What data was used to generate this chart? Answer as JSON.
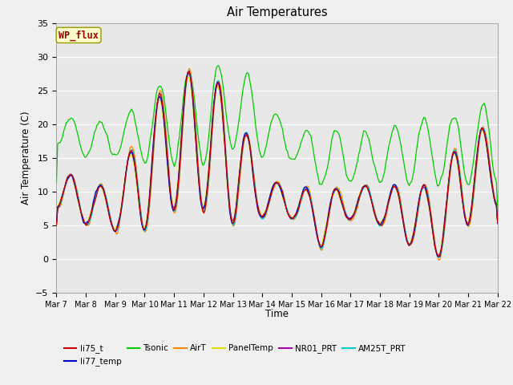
{
  "title": "Air Temperatures",
  "xlabel": "Time",
  "ylabel": "Air Temperature (C)",
  "ylim": [
    -5,
    35
  ],
  "background_color": "#e8e8e8",
  "fig_facecolor": "#f0f0f0",
  "series_colors": {
    "li75_t": "#cc0000",
    "li77_temp": "#0000cc",
    "Tsonic": "#00cc00",
    "AirT": "#ff8800",
    "PanelTemp": "#dddd00",
    "NR01_PRT": "#aa00aa",
    "AM25T_PRT": "#00cccc"
  },
  "wp_flux_box": {
    "text": "WP_flux",
    "bg": "#ffffcc",
    "border": "#888800",
    "text_color": "#990000"
  },
  "x_tick_labels": [
    "Mar 7",
    "Mar 8",
    "Mar 9",
    "Mar 10",
    "Mar 11",
    "Mar 12",
    "Mar 13",
    "Mar 14",
    "Mar 15",
    "Mar 16",
    "Mar 17",
    "Mar 18",
    "Mar 19",
    "Mar 20",
    "Mar 21",
    "Mar 22"
  ],
  "legend_row1": [
    "li75_t",
    "li77_temp",
    "Tsonic",
    "AirT",
    "PanelTemp",
    "NR01_PRT"
  ],
  "legend_row2": [
    "AM25T_PRT"
  ]
}
